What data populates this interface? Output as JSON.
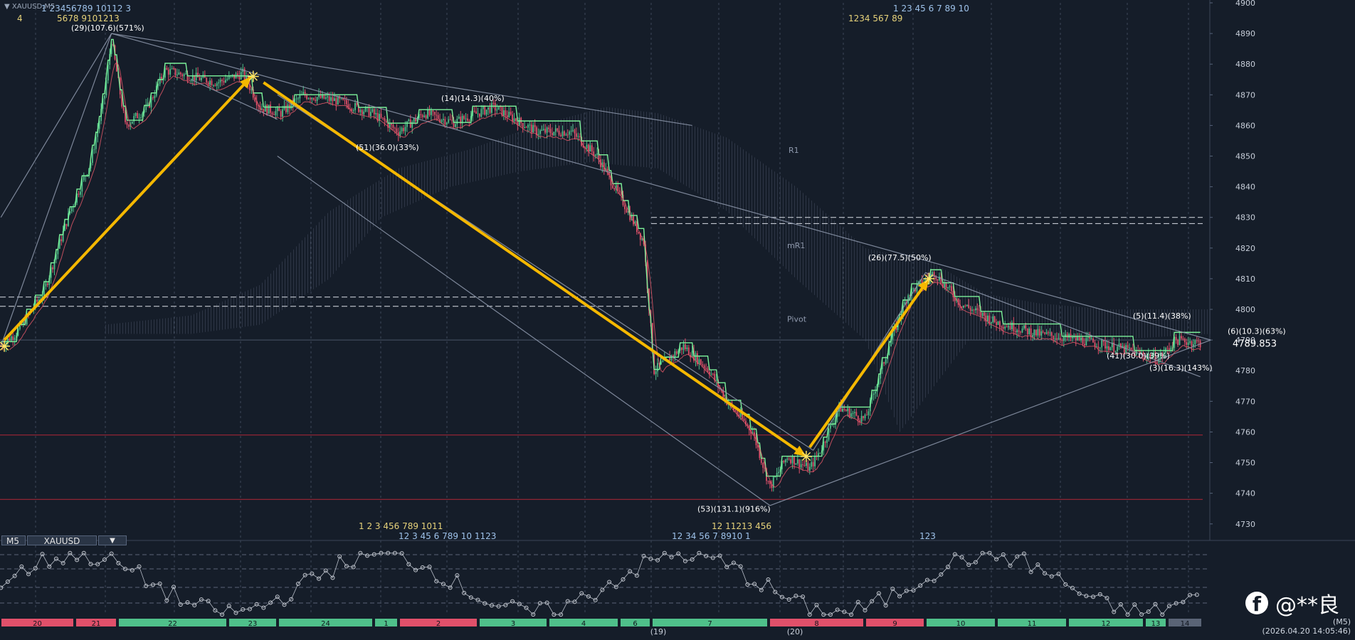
{
  "window": {
    "symbol_caption": "▼ XAUUSD,M5",
    "period_badge": "(M5)",
    "timestamp": "(2026.04.20 14:05:46)"
  },
  "tabs": {
    "period": "M5",
    "symbol": "XAUUSD",
    "dropdown": "▼"
  },
  "watermark": {
    "handle": "@**良",
    "logo_letter": "f"
  },
  "colors": {
    "background": "#151d29",
    "bull": "#4fc08a",
    "bear": "#e0506a",
    "arrow": "#f5b800",
    "step_line": "#7cf29a",
    "red_ma": "#e85a6a",
    "tl": "#8f99ad",
    "level_red": "#b12637"
  },
  "chart_data": {
    "type": "candlestick",
    "symbol": "XAUUSD",
    "timeframe": "M5",
    "ylim": [
      4726,
      4900
    ],
    "y_ticks": [
      4730,
      4740,
      4750,
      4760,
      4770,
      4780,
      4790,
      4800,
      4810,
      4820,
      4830,
      4840,
      4850,
      4860,
      4870,
      4880,
      4890,
      4900
    ],
    "current_price": "4789.853",
    "pivots": [
      "R1",
      "mR1",
      "Pivot"
    ],
    "annotations": [
      {
        "text": "(29)(107.6)(571%)",
        "y": 4891
      },
      {
        "text": "(14)(14.3)(40%)",
        "y": 4868
      },
      {
        "text": "(51)(36.0)(33%)",
        "y": 4852
      },
      {
        "text": "(26)(77.5)(50%)",
        "y": 4816
      },
      {
        "text": "(5)(11.4)(38%)",
        "y": 4797
      },
      {
        "text": "(6)(10.3)(63%)",
        "y": 4792
      },
      {
        "text": "(41)(30.0)(39%)",
        "y": 4784
      },
      {
        "text": "(3)(16.3)(143%)",
        "y": 4780
      },
      {
        "text": "(53)(131.1)(916%)",
        "y": 4734
      }
    ],
    "path": [
      [
        0,
        4788
      ],
      [
        10,
        4793
      ],
      [
        25,
        4806
      ],
      [
        40,
        4832
      ],
      [
        52,
        4848
      ],
      [
        60,
        4870
      ],
      [
        64,
        4888
      ],
      [
        72,
        4860
      ],
      [
        85,
        4866
      ],
      [
        95,
        4878
      ],
      [
        110,
        4876
      ],
      [
        125,
        4874
      ],
      [
        140,
        4877
      ],
      [
        150,
        4866
      ],
      [
        162,
        4864
      ],
      [
        175,
        4870
      ],
      [
        195,
        4868
      ],
      [
        215,
        4864
      ],
      [
        230,
        4858
      ],
      [
        245,
        4864
      ],
      [
        262,
        4861
      ],
      [
        285,
        4866
      ],
      [
        310,
        4858
      ],
      [
        330,
        4858
      ],
      [
        345,
        4850
      ],
      [
        360,
        4835
      ],
      [
        372,
        4822
      ],
      [
        378,
        4780
      ],
      [
        395,
        4788
      ],
      [
        410,
        4780
      ],
      [
        420,
        4770
      ],
      [
        435,
        4760
      ],
      [
        445,
        4742
      ],
      [
        455,
        4752
      ],
      [
        468,
        4748
      ],
      [
        475,
        4755
      ],
      [
        485,
        4768
      ],
      [
        500,
        4764
      ],
      [
        515,
        4790
      ],
      [
        525,
        4805
      ],
      [
        540,
        4812
      ],
      [
        555,
        4802
      ],
      [
        575,
        4796
      ],
      [
        600,
        4792
      ],
      [
        625,
        4790
      ],
      [
        650,
        4787
      ],
      [
        670,
        4784
      ],
      [
        680,
        4790
      ],
      [
        694,
        4789
      ]
    ],
    "bottom_dates": [
      "20",
      "21",
      "22",
      "23",
      "24",
      "1",
      "2",
      "3",
      "4",
      "6",
      "7",
      "8",
      "9",
      "10",
      "11",
      "12",
      "13",
      "14"
    ],
    "bottom_marks": [
      "(19)",
      "(20)"
    ],
    "bottom_bar_colors": [
      "bear",
      "bear",
      "bull",
      "bull",
      "bull",
      "bull",
      "bear",
      "bull",
      "bull",
      "bull",
      "bull",
      "bear",
      "bear",
      "bull",
      "bull",
      "bull",
      "bull",
      "neutral"
    ],
    "count_rows": {
      "top_left": "1  23456789 10112 3",
      "top_left_2": "5678 9101213",
      "top_left_3": "4",
      "top_right": "1  23                  45         6           7              89      10",
      "top_right_2": "1234  567   89",
      "bottom_left": "1      2     3                              456          789 1011",
      "bottom_left_2": "12      3           45  6     789  10              1123",
      "bottom_mid": "12  11213    456",
      "bottom_mid_2": "12   34      56      7   8910 1",
      "bottom_right": "123"
    }
  }
}
